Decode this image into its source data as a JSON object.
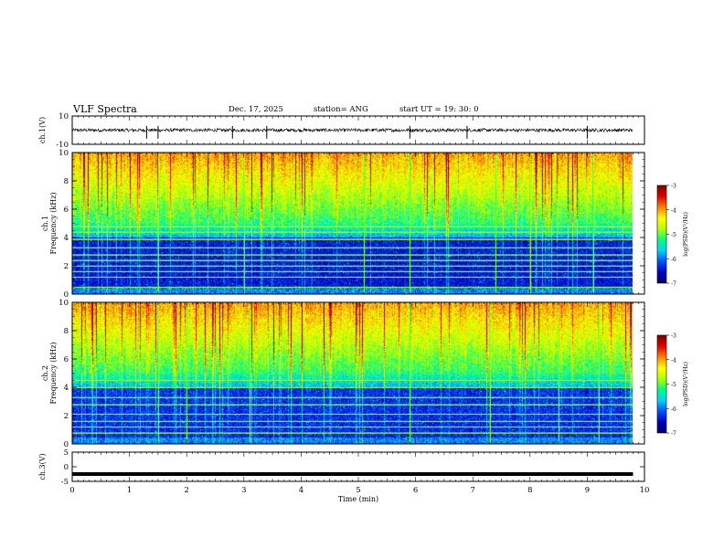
{
  "header": {
    "title": "VLF Spectra",
    "date": "Dec. 17, 2025",
    "station": "station= ANG",
    "start": "start  UT  =   19: 30: 0"
  },
  "chart_data": [
    {
      "type": "line",
      "panel": "ch1-waveform",
      "ylabel": "ch.1(V)",
      "yticks": [
        "10",
        "-10"
      ],
      "ylim": [
        -10,
        10
      ],
      "baseline": 0,
      "noise_amplitude": 1.2,
      "spikes": [
        1.3,
        1.5,
        2.8,
        3.4,
        5.9,
        6.9,
        9.0
      ]
    },
    {
      "type": "heatmap",
      "panel": "ch1-spectrogram",
      "ylabel_line1": "ch.1",
      "ylabel_line2": "Frequency (kHz)",
      "yticks": [
        "0",
        "2",
        "4",
        "6",
        "8",
        "10"
      ],
      "ylim": [
        0,
        10
      ],
      "xlim": [
        0,
        10
      ],
      "data_end_min": 9.8,
      "colorbar": {
        "label": "log(PSD)(V²/Hz)",
        "ticks": [
          "-3",
          "-4",
          "-5",
          "-6",
          "-7"
        ],
        "range": [
          -7,
          -3
        ]
      },
      "narrowband_lines_khz": [
        0.5,
        1.2,
        1.6,
        2.0,
        2.4,
        2.8,
        3.3,
        3.9,
        4.4,
        4.8
      ],
      "sferic_times_min": [
        1.5,
        3.0,
        5.1,
        5.9,
        7.4,
        8.0,
        9.1
      ]
    },
    {
      "type": "heatmap",
      "panel": "ch2-spectrogram",
      "ylabel_line1": "ch.2",
      "ylabel_line2": "Frequency (kHz)",
      "yticks": [
        "0",
        "2",
        "4",
        "6",
        "8",
        "10"
      ],
      "ylim": [
        0,
        10
      ],
      "xlim": [
        0,
        10
      ],
      "data_end_min": 9.8,
      "colorbar": {
        "label": "log(PSD)(V²/Hz)",
        "ticks": [
          "-3",
          "-4",
          "-5",
          "-6",
          "-7"
        ],
        "range": [
          -7,
          -3
        ]
      },
      "narrowband_lines_khz": [
        0.8,
        1.2,
        1.6,
        2.1,
        2.8,
        3.3,
        4.0,
        4.5
      ],
      "sferic_times_min": [
        1.5,
        2.0,
        3.1,
        5.9,
        7.3,
        8.5,
        9.2
      ]
    },
    {
      "type": "line",
      "panel": "ch3-waveform",
      "ylabel": "ch.3(V)",
      "yticks": [
        "5",
        "0",
        "-5"
      ],
      "ylim": [
        -5,
        5
      ],
      "baseline": -2.5,
      "xlabel": "Time (min)",
      "xticks": [
        "0",
        "1",
        "2",
        "3",
        "4",
        "5",
        "6",
        "7",
        "8",
        "9",
        "10"
      ],
      "xlim": [
        0,
        10
      ]
    }
  ],
  "colors": {
    "colormap": [
      "#000060",
      "#0000c8",
      "#0050ff",
      "#00d2ff",
      "#00ff80",
      "#b4ff00",
      "#ffff00",
      "#ff8000",
      "#e00000",
      "#800000"
    ],
    "line": "#000000"
  }
}
